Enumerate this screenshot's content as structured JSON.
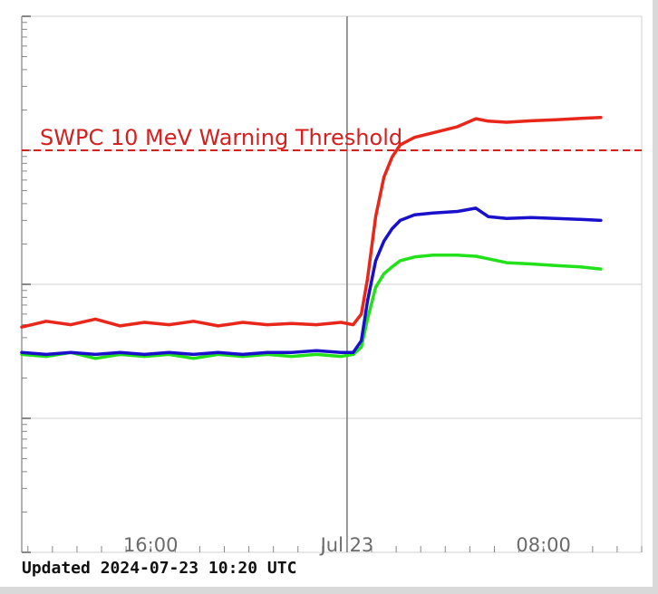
{
  "footer": {
    "updated_text": "Updated 2024-07-23 10:20 UTC"
  },
  "threshold": {
    "label": "SWPC 10 MeV Warning Threshold",
    "value": 10,
    "color": "#d42020"
  },
  "colors": {
    "grid": "#d0d0d0",
    "axis": "#999999",
    "marker": "#777777"
  },
  "chart_data": {
    "type": "line",
    "title": "",
    "xlabel": "",
    "ylabel": "",
    "y_scale": "log",
    "ylim": [
      0.01,
      100
    ],
    "xlim": [
      "2024-07-22 10:45",
      "2024-07-23 12:00"
    ],
    "x_ticks": [
      {
        "label": "16:00",
        "time": "2024-07-22 16:00"
      },
      {
        "label": "Jul 23",
        "time": "2024-07-23 00:00"
      },
      {
        "label": "08:00",
        "time": "2024-07-23 08:00"
      }
    ],
    "x_marker": "2024-07-23 00:00",
    "grid": true,
    "series": [
      {
        "color": "#e8261a",
        "x": [
          "2024-07-22 10:45",
          "2024-07-22 11:45",
          "2024-07-22 12:45",
          "2024-07-22 13:45",
          "2024-07-22 14:45",
          "2024-07-22 15:45",
          "2024-07-22 16:45",
          "2024-07-22 17:45",
          "2024-07-22 18:45",
          "2024-07-22 19:45",
          "2024-07-22 20:45",
          "2024-07-22 21:45",
          "2024-07-22 22:45",
          "2024-07-22 23:45",
          "2024-07-23 00:15",
          "2024-07-23 00:35",
          "2024-07-23 00:50",
          "2024-07-23 01:10",
          "2024-07-23 01:30",
          "2024-07-23 01:50",
          "2024-07-23 02:10",
          "2024-07-23 02:45",
          "2024-07-23 03:30",
          "2024-07-23 04:30",
          "2024-07-23 05:15",
          "2024-07-23 05:45",
          "2024-07-23 06:30",
          "2024-07-23 07:30",
          "2024-07-23 08:30",
          "2024-07-23 09:30",
          "2024-07-23 10:20"
        ],
        "values": [
          0.48,
          0.53,
          0.5,
          0.55,
          0.49,
          0.52,
          0.5,
          0.53,
          0.49,
          0.52,
          0.5,
          0.51,
          0.5,
          0.52,
          0.5,
          0.6,
          1.1,
          3.2,
          6.3,
          8.9,
          11,
          12.5,
          13.5,
          15,
          17.2,
          16.5,
          16.2,
          16.6,
          16.9,
          17.3,
          17.6
        ]
      },
      {
        "color": "#1a10cc",
        "x": [
          "2024-07-22 10:45",
          "2024-07-22 11:45",
          "2024-07-22 12:45",
          "2024-07-22 13:45",
          "2024-07-22 14:45",
          "2024-07-22 15:45",
          "2024-07-22 16:45",
          "2024-07-22 17:45",
          "2024-07-22 18:45",
          "2024-07-22 19:45",
          "2024-07-22 20:45",
          "2024-07-22 21:45",
          "2024-07-22 22:45",
          "2024-07-22 23:45",
          "2024-07-23 00:15",
          "2024-07-23 00:35",
          "2024-07-23 00:50",
          "2024-07-23 01:10",
          "2024-07-23 01:30",
          "2024-07-23 01:50",
          "2024-07-23 02:10",
          "2024-07-23 02:45",
          "2024-07-23 03:30",
          "2024-07-23 04:30",
          "2024-07-23 05:15",
          "2024-07-23 05:45",
          "2024-07-23 06:30",
          "2024-07-23 07:30",
          "2024-07-23 08:30",
          "2024-07-23 09:30",
          "2024-07-23 10:20"
        ],
        "values": [
          0.31,
          0.3,
          0.31,
          0.3,
          0.31,
          0.3,
          0.31,
          0.3,
          0.31,
          0.3,
          0.31,
          0.31,
          0.32,
          0.31,
          0.31,
          0.38,
          0.75,
          1.5,
          2.1,
          2.6,
          3.0,
          3.3,
          3.4,
          3.5,
          3.7,
          3.2,
          3.1,
          3.15,
          3.1,
          3.05,
          3.0
        ]
      },
      {
        "color": "#22e01a",
        "x": [
          "2024-07-22 10:45",
          "2024-07-22 11:45",
          "2024-07-22 12:45",
          "2024-07-22 13:45",
          "2024-07-22 14:45",
          "2024-07-22 15:45",
          "2024-07-22 16:45",
          "2024-07-22 17:45",
          "2024-07-22 18:45",
          "2024-07-22 19:45",
          "2024-07-22 20:45",
          "2024-07-22 21:45",
          "2024-07-22 22:45",
          "2024-07-22 23:45",
          "2024-07-23 00:15",
          "2024-07-23 00:35",
          "2024-07-23 00:50",
          "2024-07-23 01:10",
          "2024-07-23 01:30",
          "2024-07-23 01:50",
          "2024-07-23 02:10",
          "2024-07-23 02:45",
          "2024-07-23 03:30",
          "2024-07-23 04:30",
          "2024-07-23 05:15",
          "2024-07-23 05:45",
          "2024-07-23 06:30",
          "2024-07-23 07:30",
          "2024-07-23 08:30",
          "2024-07-23 09:30",
          "2024-07-23 10:20"
        ],
        "values": [
          0.3,
          0.29,
          0.31,
          0.28,
          0.3,
          0.29,
          0.3,
          0.28,
          0.3,
          0.29,
          0.3,
          0.29,
          0.3,
          0.29,
          0.3,
          0.34,
          0.55,
          0.95,
          1.2,
          1.35,
          1.5,
          1.6,
          1.65,
          1.65,
          1.62,
          1.55,
          1.45,
          1.42,
          1.38,
          1.35,
          1.3
        ]
      }
    ]
  }
}
